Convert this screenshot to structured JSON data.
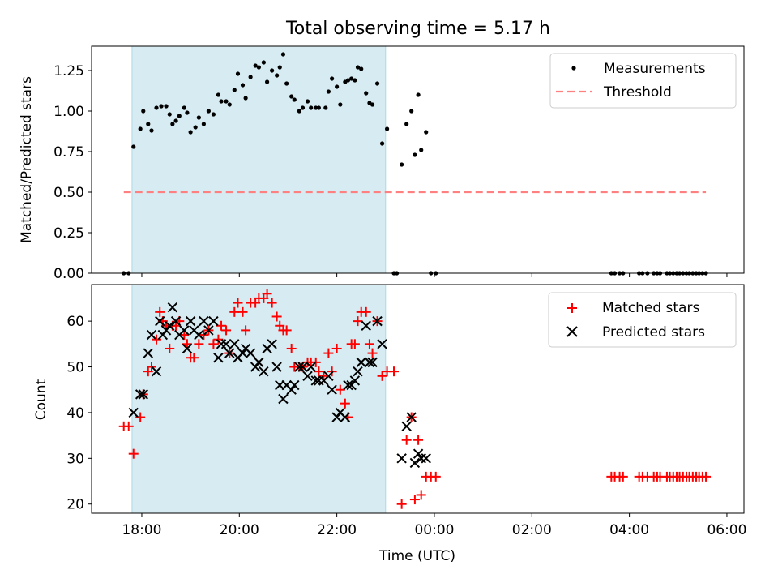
{
  "title": "Total observing time = 5.17 h",
  "xlabel": "Time (UTC)",
  "x_ticks": [
    "18:00",
    "20:00",
    "22:00",
    "00:00",
    "02:00",
    "04:00",
    "06:00"
  ],
  "colors": {
    "measurement": "#000000",
    "threshold": "#ff8080",
    "matched": "#ff0000",
    "predicted": "#000000",
    "shade": "#add8e6"
  },
  "chart_data": [
    {
      "type": "scatter",
      "ylabel": "Matched/Predicted stars",
      "ylim": [
        0,
        1.4
      ],
      "y_ticks": [
        "0.00",
        "0.25",
        "0.50",
        "0.75",
        "1.00",
        "1.25"
      ],
      "xlim_hours": [
        16.97,
        30.35
      ],
      "shaded_span_hours": [
        17.8,
        23.0
      ],
      "threshold": {
        "name": "Threshold",
        "value": 0.5,
        "x_range_hours": [
          17.63,
          29.57
        ]
      },
      "legend": [
        "Measurements",
        "Threshold"
      ],
      "legend_position": "upper right",
      "series": [
        {
          "name": "Measurements",
          "points": [
            [
              17.63,
              0
            ],
            [
              17.73,
              0
            ],
            [
              17.83,
              0.78
            ],
            [
              17.97,
              0.89
            ],
            [
              18.03,
              1.0
            ],
            [
              18.13,
              0.92
            ],
            [
              18.2,
              0.88
            ],
            [
              18.3,
              1.02
            ],
            [
              18.4,
              1.03
            ],
            [
              18.5,
              1.03
            ],
            [
              18.57,
              0.98
            ],
            [
              18.63,
              0.92
            ],
            [
              18.7,
              0.94
            ],
            [
              18.77,
              0.97
            ],
            [
              18.87,
              1.02
            ],
            [
              18.93,
              0.99
            ],
            [
              19.0,
              0.87
            ],
            [
              19.1,
              0.9
            ],
            [
              19.17,
              0.96
            ],
            [
              19.27,
              0.92
            ],
            [
              19.37,
              1.0
            ],
            [
              19.47,
              0.98
            ],
            [
              19.57,
              1.1
            ],
            [
              19.63,
              1.06
            ],
            [
              19.73,
              1.06
            ],
            [
              19.8,
              1.04
            ],
            [
              19.9,
              1.13
            ],
            [
              19.97,
              1.23
            ],
            [
              20.07,
              1.16
            ],
            [
              20.13,
              1.08
            ],
            [
              20.23,
              1.21
            ],
            [
              20.33,
              1.28
            ],
            [
              20.4,
              1.27
            ],
            [
              20.5,
              1.3
            ],
            [
              20.57,
              1.18
            ],
            [
              20.67,
              1.25
            ],
            [
              20.77,
              1.22
            ],
            [
              20.83,
              1.27
            ],
            [
              20.9,
              1.35
            ],
            [
              20.97,
              1.17
            ],
            [
              21.07,
              1.09
            ],
            [
              21.13,
              1.07
            ],
            [
              21.23,
              1.0
            ],
            [
              21.3,
              1.02
            ],
            [
              21.4,
              1.06
            ],
            [
              21.47,
              1.02
            ],
            [
              21.57,
              1.02
            ],
            [
              21.63,
              1.02
            ],
            [
              21.77,
              1.02
            ],
            [
              21.83,
              1.12
            ],
            [
              21.9,
              1.2
            ],
            [
              22.0,
              1.15
            ],
            [
              22.07,
              1.04
            ],
            [
              22.17,
              1.18
            ],
            [
              22.23,
              1.19
            ],
            [
              22.3,
              1.2
            ],
            [
              22.37,
              1.19
            ],
            [
              22.43,
              1.27
            ],
            [
              22.5,
              1.26
            ],
            [
              22.6,
              1.11
            ],
            [
              22.67,
              1.05
            ],
            [
              22.73,
              1.04
            ],
            [
              22.83,
              1.17
            ],
            [
              22.93,
              0.8
            ],
            [
              23.03,
              0.89
            ],
            [
              23.17,
              0
            ],
            [
              23.23,
              0
            ],
            [
              23.33,
              0.67
            ],
            [
              23.43,
              0.92
            ],
            [
              23.53,
              1.0
            ],
            [
              23.6,
              0.73
            ],
            [
              23.67,
              1.1
            ],
            [
              23.73,
              0.76
            ],
            [
              23.83,
              0.87
            ],
            [
              23.93,
              0
            ],
            [
              24.03,
              0
            ],
            [
              27.63,
              0
            ],
            [
              27.7,
              0
            ],
            [
              27.8,
              0
            ],
            [
              27.87,
              0
            ],
            [
              28.2,
              0
            ],
            [
              28.27,
              0
            ],
            [
              28.37,
              0
            ],
            [
              28.5,
              0
            ],
            [
              28.57,
              0
            ],
            [
              28.63,
              0
            ],
            [
              28.77,
              0
            ],
            [
              28.83,
              0
            ],
            [
              28.9,
              0
            ],
            [
              28.97,
              0
            ],
            [
              29.03,
              0
            ],
            [
              29.1,
              0
            ],
            [
              29.17,
              0
            ],
            [
              29.23,
              0
            ],
            [
              29.3,
              0
            ],
            [
              29.37,
              0
            ],
            [
              29.43,
              0
            ],
            [
              29.5,
              0
            ],
            [
              29.57,
              0
            ]
          ]
        }
      ]
    },
    {
      "type": "scatter",
      "ylabel": "Count",
      "ylim": [
        18,
        68
      ],
      "y_ticks": [
        "20",
        "30",
        "40",
        "50",
        "60"
      ],
      "xlim_hours": [
        16.97,
        30.35
      ],
      "shaded_span_hours": [
        17.8,
        23.0
      ],
      "legend": [
        "Matched stars",
        "Predicted stars"
      ],
      "legend_position": "upper right",
      "series": [
        {
          "name": "Matched stars",
          "marker": "plus",
          "points": [
            [
              17.63,
              37
            ],
            [
              17.73,
              37
            ],
            [
              17.83,
              31
            ],
            [
              17.97,
              39
            ],
            [
              18.03,
              44
            ],
            [
              18.13,
              49
            ],
            [
              18.2,
              50
            ],
            [
              18.3,
              56
            ],
            [
              18.37,
              62
            ],
            [
              18.43,
              60
            ],
            [
              18.5,
              59
            ],
            [
              18.57,
              54
            ],
            [
              18.63,
              59
            ],
            [
              18.7,
              59
            ],
            [
              18.77,
              60
            ],
            [
              18.87,
              57
            ],
            [
              18.93,
              55
            ],
            [
              19.0,
              52
            ],
            [
              19.07,
              52
            ],
            [
              19.17,
              55
            ],
            [
              19.27,
              57
            ],
            [
              19.37,
              58
            ],
            [
              19.47,
              55
            ],
            [
              19.57,
              56
            ],
            [
              19.63,
              59
            ],
            [
              19.73,
              58
            ],
            [
              19.8,
              53
            ],
            [
              19.9,
              62
            ],
            [
              19.97,
              64
            ],
            [
              20.07,
              62
            ],
            [
              20.13,
              58
            ],
            [
              20.23,
              64
            ],
            [
              20.33,
              64
            ],
            [
              20.4,
              65
            ],
            [
              20.5,
              65
            ],
            [
              20.57,
              66
            ],
            [
              20.67,
              64
            ],
            [
              20.77,
              61
            ],
            [
              20.83,
              59
            ],
            [
              20.9,
              58
            ],
            [
              20.97,
              58
            ],
            [
              21.07,
              54
            ],
            [
              21.13,
              50
            ],
            [
              21.23,
              50
            ],
            [
              21.3,
              50
            ],
            [
              21.4,
              51
            ],
            [
              21.47,
              51
            ],
            [
              21.57,
              51
            ],
            [
              21.63,
              49
            ],
            [
              21.73,
              48
            ],
            [
              21.83,
              53
            ],
            [
              21.9,
              49
            ],
            [
              22.0,
              54
            ],
            [
              22.07,
              45
            ],
            [
              22.17,
              42
            ],
            [
              22.23,
              39
            ],
            [
              22.3,
              55
            ],
            [
              22.37,
              55
            ],
            [
              22.43,
              60
            ],
            [
              22.5,
              62
            ],
            [
              22.6,
              62
            ],
            [
              22.67,
              55
            ],
            [
              22.73,
              53
            ],
            [
              22.83,
              60
            ],
            [
              22.93,
              48
            ],
            [
              23.03,
              49
            ],
            [
              23.17,
              49
            ],
            [
              23.33,
              20
            ],
            [
              23.43,
              34
            ],
            [
              23.53,
              39
            ],
            [
              23.6,
              21
            ],
            [
              23.67,
              34
            ],
            [
              23.73,
              22
            ],
            [
              23.83,
              26
            ],
            [
              23.93,
              26
            ],
            [
              24.03,
              26
            ],
            [
              27.63,
              26
            ],
            [
              27.7,
              26
            ],
            [
              27.8,
              26
            ],
            [
              27.87,
              26
            ],
            [
              28.2,
              26
            ],
            [
              28.27,
              26
            ],
            [
              28.37,
              26
            ],
            [
              28.5,
              26
            ],
            [
              28.57,
              26
            ],
            [
              28.63,
              26
            ],
            [
              28.77,
              26
            ],
            [
              28.83,
              26
            ],
            [
              28.9,
              26
            ],
            [
              28.97,
              26
            ],
            [
              29.03,
              26
            ],
            [
              29.1,
              26
            ],
            [
              29.17,
              26
            ],
            [
              29.23,
              26
            ],
            [
              29.3,
              26
            ],
            [
              29.37,
              26
            ],
            [
              29.43,
              26
            ],
            [
              29.5,
              26
            ],
            [
              29.57,
              26
            ]
          ]
        },
        {
          "name": "Predicted stars",
          "marker": "x",
          "points": [
            [
              17.83,
              40
            ],
            [
              17.97,
              44
            ],
            [
              18.03,
              44
            ],
            [
              18.13,
              53
            ],
            [
              18.2,
              57
            ],
            [
              18.3,
              49
            ],
            [
              18.37,
              60
            ],
            [
              18.43,
              57
            ],
            [
              18.5,
              58
            ],
            [
              18.57,
              59
            ],
            [
              18.63,
              63
            ],
            [
              18.7,
              60
            ],
            [
              18.77,
              57
            ],
            [
              18.87,
              58
            ],
            [
              18.93,
              54
            ],
            [
              19.0,
              60
            ],
            [
              19.07,
              58
            ],
            [
              19.17,
              57
            ],
            [
              19.27,
              60
            ],
            [
              19.37,
              58
            ],
            [
              19.47,
              60
            ],
            [
              19.57,
              52
            ],
            [
              19.63,
              55
            ],
            [
              19.73,
              55
            ],
            [
              19.8,
              53
            ],
            [
              19.9,
              55
            ],
            [
              19.97,
              52
            ],
            [
              20.07,
              53
            ],
            [
              20.13,
              54
            ],
            [
              20.23,
              53
            ],
            [
              20.33,
              50
            ],
            [
              20.4,
              51
            ],
            [
              20.5,
              49
            ],
            [
              20.57,
              54
            ],
            [
              20.67,
              55
            ],
            [
              20.77,
              50
            ],
            [
              20.83,
              46
            ],
            [
              20.9,
              43
            ],
            [
              20.97,
              46
            ],
            [
              21.07,
              45
            ],
            [
              21.13,
              46
            ],
            [
              21.23,
              50
            ],
            [
              21.3,
              50
            ],
            [
              21.4,
              48
            ],
            [
              21.47,
              50
            ],
            [
              21.57,
              47
            ],
            [
              21.63,
              47
            ],
            [
              21.73,
              47
            ],
            [
              21.83,
              48
            ],
            [
              21.9,
              45
            ],
            [
              22.0,
              39
            ],
            [
              22.07,
              40
            ],
            [
              22.17,
              39
            ],
            [
              22.23,
              46
            ],
            [
              22.3,
              46
            ],
            [
              22.37,
              47
            ],
            [
              22.43,
              49
            ],
            [
              22.5,
              51
            ],
            [
              22.6,
              59
            ],
            [
              22.67,
              51
            ],
            [
              22.73,
              51
            ],
            [
              22.83,
              60
            ],
            [
              22.93,
              55
            ],
            [
              23.33,
              30
            ],
            [
              23.43,
              37
            ],
            [
              23.53,
              39
            ],
            [
              23.6,
              29
            ],
            [
              23.67,
              31
            ],
            [
              23.73,
              30
            ],
            [
              23.83,
              30
            ]
          ]
        }
      ]
    }
  ]
}
